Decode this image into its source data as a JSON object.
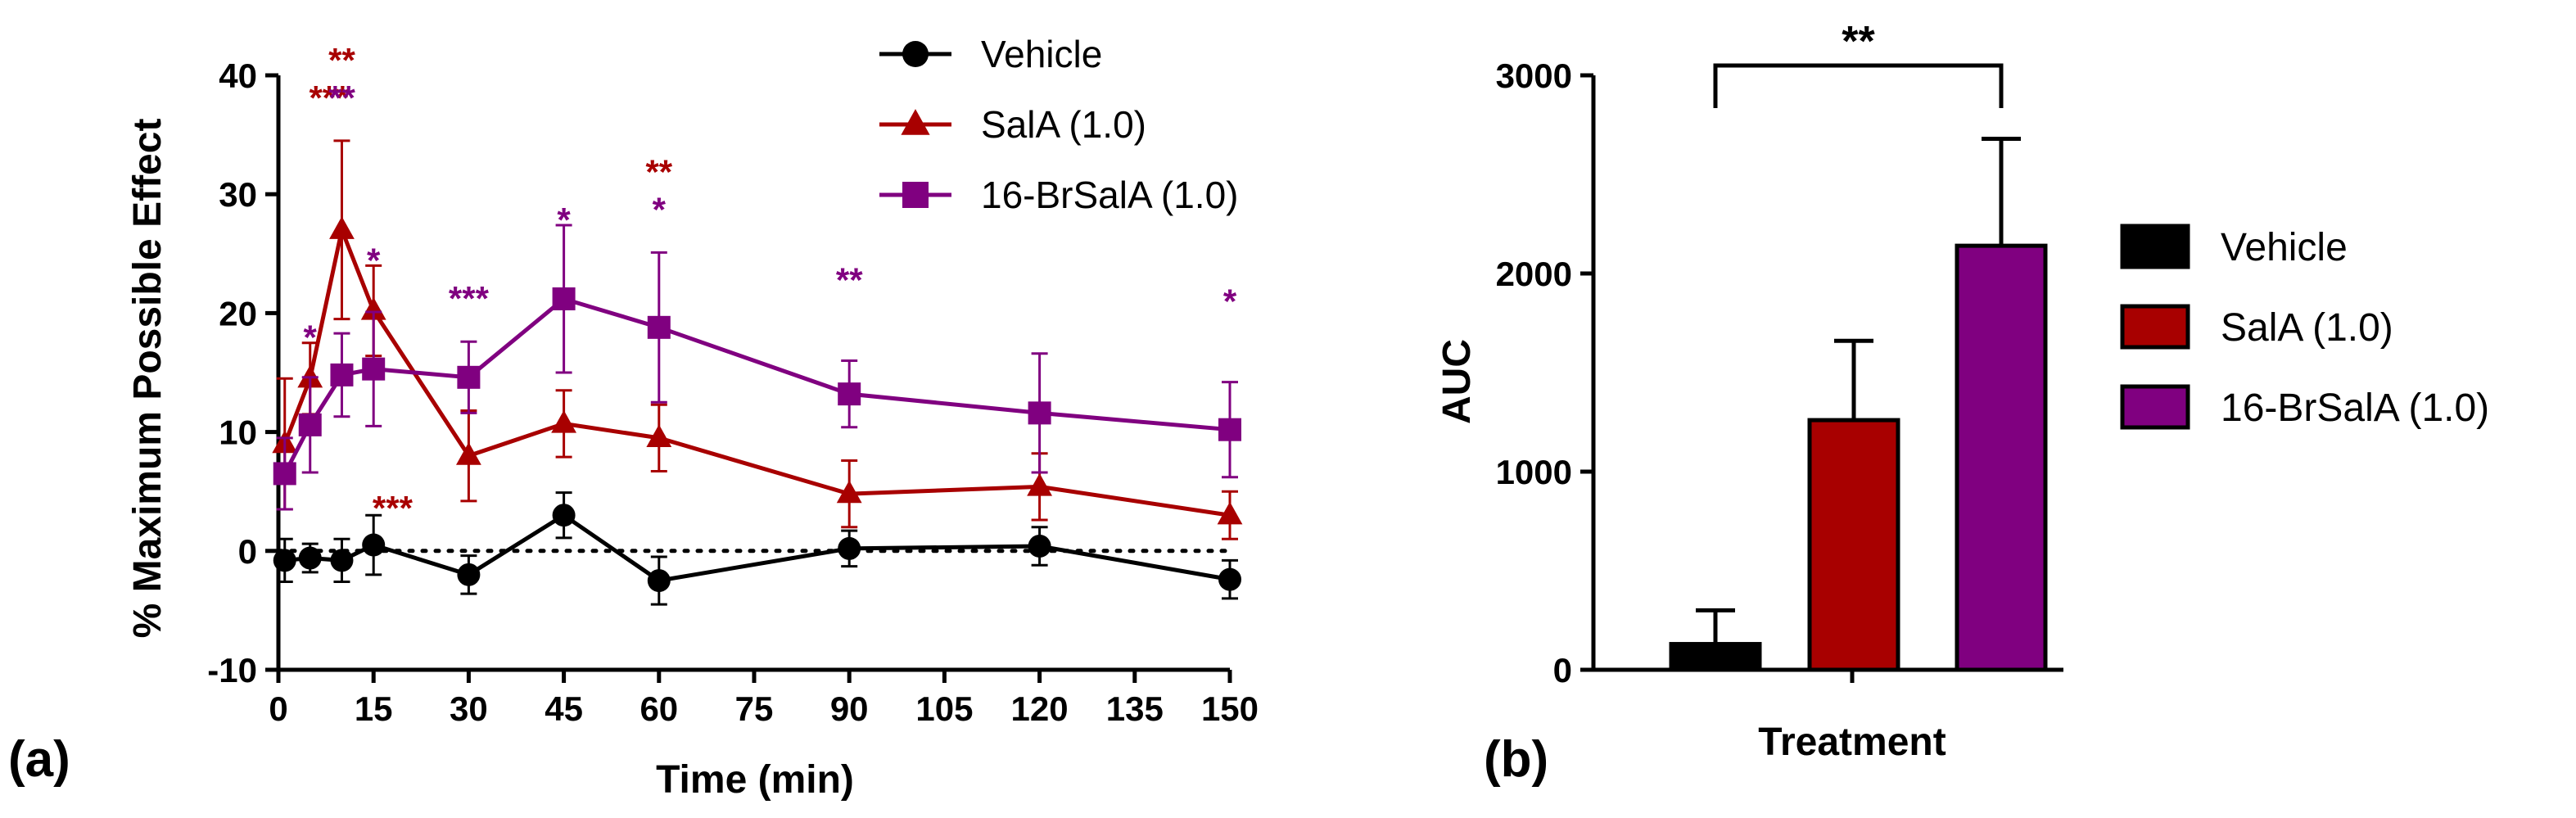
{
  "chart_data": [
    {
      "type": "line",
      "panel_label": "(a)",
      "xlabel": "Time (min)",
      "ylabel": "% Maximum Possible Effect",
      "xlim": [
        0,
        150
      ],
      "ylim": [
        -10,
        40
      ],
      "xticks": [
        0,
        15,
        30,
        45,
        60,
        75,
        90,
        105,
        120,
        135,
        150
      ],
      "yticks": [
        -10,
        0,
        10,
        20,
        30,
        40
      ],
      "reference_line_y": 0,
      "series": [
        {
          "name": "Vehicle",
          "color": "#000000",
          "marker": "circle",
          "x": [
            1,
            5,
            10,
            15,
            30,
            45,
            60,
            90,
            120,
            150
          ],
          "y": [
            -0.8,
            -0.6,
            -0.8,
            0.5,
            -2.0,
            3.0,
            -2.5,
            0.2,
            0.4,
            -2.4
          ],
          "err": [
            1.8,
            1.2,
            1.8,
            2.5,
            1.6,
            1.9,
            2.0,
            1.5,
            1.6,
            1.6
          ]
        },
        {
          "name": "SalA (1.0)",
          "color": "#a80000",
          "marker": "triangle",
          "x": [
            1,
            5,
            10,
            15,
            30,
            45,
            60,
            90,
            120,
            150
          ],
          "y": [
            9.0,
            14.5,
            27.0,
            20.2,
            8.0,
            10.7,
            9.5,
            4.8,
            5.4,
            3.0
          ],
          "err": [
            5.5,
            3.0,
            7.5,
            3.8,
            3.8,
            2.8,
            2.8,
            2.8,
            2.8,
            2.0
          ],
          "significance": [
            {
              "x": 10,
              "label": "**",
              "row": 0
            },
            {
              "x": 8,
              "label": "***",
              "row": 1
            },
            {
              "x": 18,
              "label": "***",
              "row": 1
            },
            {
              "x": 60,
              "label": "**",
              "row": 0
            }
          ]
        },
        {
          "name": "16-BrSalA (1.0)",
          "color": "#800080",
          "marker": "square",
          "x": [
            1,
            5,
            10,
            15,
            30,
            45,
            60,
            90,
            120,
            150
          ],
          "y": [
            6.5,
            10.6,
            14.8,
            15.3,
            14.6,
            21.2,
            18.8,
            13.2,
            11.6,
            10.2
          ],
          "err": [
            3.0,
            4.0,
            3.5,
            4.8,
            3.0,
            6.2,
            6.3,
            2.8,
            5.0,
            4.0
          ],
          "significance": [
            {
              "x": 10,
              "label": "**",
              "row": 1
            },
            {
              "x": 5,
              "label": "*",
              "row": 2
            },
            {
              "x": 15,
              "label": "*",
              "row": 2
            },
            {
              "x": 30,
              "label": "***",
              "row": 1
            },
            {
              "x": 45,
              "label": "*",
              "row": 2
            },
            {
              "x": 60,
              "label": "*",
              "row": 1
            },
            {
              "x": 90,
              "label": "**",
              "row": 0
            },
            {
              "x": 150,
              "label": "*",
              "row": 0
            }
          ]
        }
      ],
      "legend": [
        "Vehicle",
        "SalA (1.0)",
        "16-BrSalA (1.0)"
      ]
    },
    {
      "type": "bar",
      "panel_label": "(b)",
      "xlabel": "Treatment",
      "ylabel": "AUC",
      "ylim": [
        0,
        3000
      ],
      "yticks": [
        0,
        1000,
        2000,
        3000
      ],
      "categories": [
        "Vehicle",
        "SalA (1.0)",
        "16-BrSalA (1.0)"
      ],
      "values": [
        130,
        1260,
        2140
      ],
      "err": [
        170,
        400,
        540
      ],
      "colors": [
        "#000000",
        "#a80000",
        "#800080"
      ],
      "significance": {
        "between": [
          0,
          2
        ],
        "label": "**"
      },
      "legend": [
        "Vehicle",
        "SalA (1.0)",
        "16-BrSalA (1.0)"
      ]
    }
  ]
}
